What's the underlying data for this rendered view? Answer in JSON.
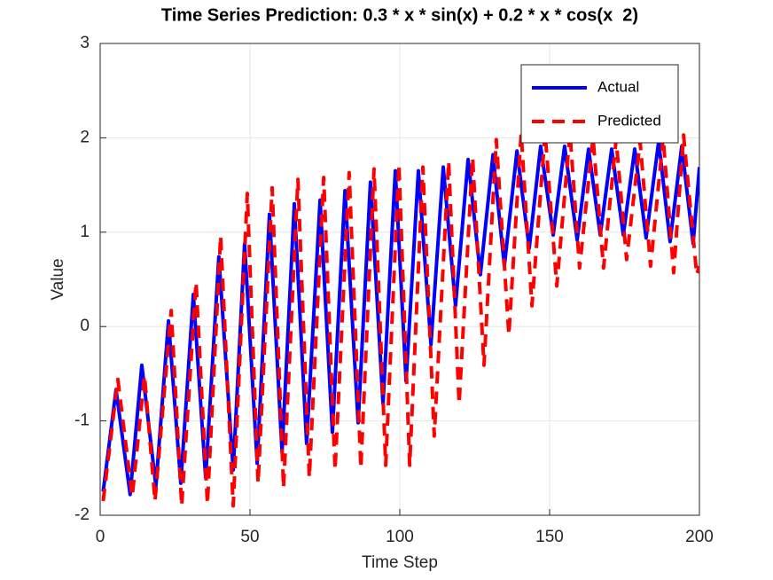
{
  "chart_data": {
    "type": "line",
    "title": "Time Series Prediction: 0.3 * x * sin(x) + 0.2 * x * cos(x  2)",
    "xlabel": "Time Step",
    "ylabel": "Value",
    "xlim": [
      0,
      200
    ],
    "xticks": [
      0,
      50,
      100,
      150,
      200
    ],
    "ylim": [
      -2,
      3
    ],
    "yticks": [
      -2,
      -1,
      0,
      1,
      2,
      3
    ],
    "grid": true,
    "legend": "upper right",
    "series": [
      {
        "name": "Actual",
        "color": "#0000ff",
        "dash": "solid",
        "x": [
          1,
          5.3,
          10,
          13.9,
          18.6,
          22.8,
          26.9,
          31.1,
          35.2,
          39.6,
          44.4,
          48.2,
          52.4,
          56.5,
          60.7,
          64.8,
          68.9,
          73.4,
          77.5,
          81.7,
          86.1,
          90.2,
          94.4,
          98.5,
          102.1,
          106.2,
          110.4,
          114.5,
          118.6,
          122.8,
          126.9,
          131.1,
          134.9,
          139.1,
          143.2,
          147,
          151.2,
          155,
          159.2,
          163,
          166.9,
          170.7,
          174.6,
          178.4,
          182.2,
          186.4,
          190.2,
          194.1,
          197.9,
          200
        ],
        "values": [
          -1.75,
          -0.67,
          -1.78,
          -0.41,
          -1.69,
          0.06,
          -1.66,
          0.34,
          -1.6,
          0.74,
          -1.52,
          0.88,
          -1.45,
          1.19,
          -1.33,
          1.3,
          -1.24,
          1.34,
          -1.12,
          1.44,
          -1.02,
          1.53,
          -0.82,
          1.65,
          -0.58,
          1.65,
          -0.19,
          1.69,
          0.22,
          1.77,
          0.55,
          1.82,
          0.64,
          1.86,
          0.83,
          1.91,
          0.97,
          1.91,
          0.92,
          1.88,
          0.97,
          1.88,
          0.97,
          1.88,
          0.94,
          1.96,
          0.9,
          1.91,
          0.88,
          1.69
        ]
      },
      {
        "name": "Predicted",
        "color": "#ff0000",
        "dash": "dashed",
        "x": [
          1,
          5.9,
          10.7,
          14.8,
          18.3,
          23.7,
          27.2,
          32,
          35.8,
          40.2,
          44.4,
          49.1,
          52.7,
          57.4,
          61.2,
          66,
          69.8,
          74.6,
          78.4,
          83.1,
          87,
          91.4,
          95.3,
          99.7,
          103.3,
          107.7,
          111.5,
          116.3,
          119.8,
          124.3,
          128.1,
          132.2,
          136.4,
          140.5,
          144.1,
          148.5,
          152.4,
          156.8,
          160,
          164.5,
          168,
          172.2,
          175.7,
          180.2,
          183.7,
          187.9,
          191.4,
          194.7,
          199.1,
          200
        ],
        "values": [
          -1.85,
          -0.56,
          -1.8,
          -0.52,
          -1.85,
          0.17,
          -1.9,
          0.47,
          -1.88,
          0.96,
          -1.9,
          1.41,
          -1.66,
          1.47,
          -1.71,
          1.56,
          -1.6,
          1.58,
          -1.52,
          1.63,
          -1.5,
          1.67,
          -1.47,
          1.72,
          -1.47,
          1.69,
          -1.16,
          1.75,
          -0.82,
          1.79,
          -0.41,
          1.98,
          -0.09,
          2.05,
          0.22,
          2.05,
          0.43,
          2.05,
          0.62,
          2.0,
          0.62,
          1.98,
          0.71,
          1.96,
          0.64,
          2.0,
          0.57,
          2.03,
          0.55,
          0.64
        ]
      }
    ]
  }
}
